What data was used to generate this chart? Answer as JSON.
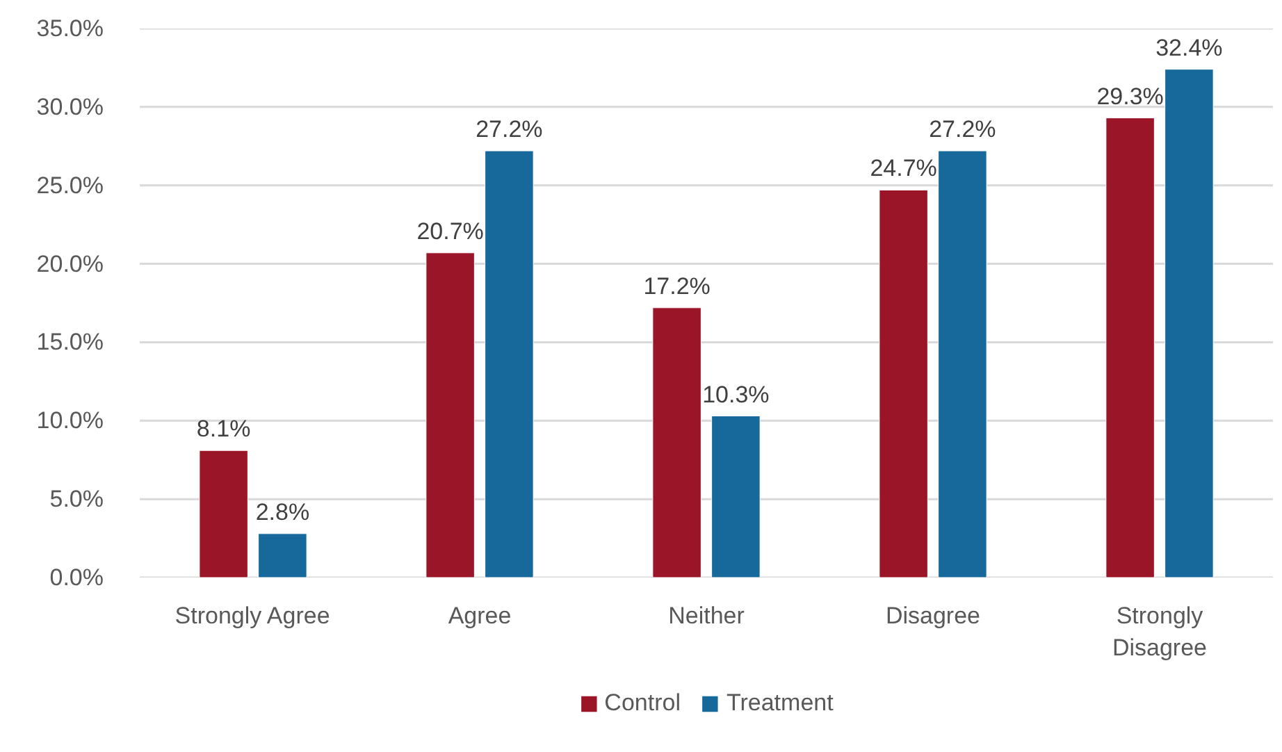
{
  "chart_data": {
    "type": "bar",
    "categories": [
      "Strongly Agree",
      "Agree",
      "Neither",
      "Disagree",
      "Strongly Disagree"
    ],
    "series": [
      {
        "name": "Control",
        "color": "#9b1528",
        "values": [
          8.1,
          20.7,
          17.2,
          24.7,
          29.3
        ],
        "value_labels": [
          "8.1%",
          "20.7%",
          "17.2%",
          "24.7%",
          "29.3%"
        ]
      },
      {
        "name": "Treatment",
        "color": "#16699a",
        "values": [
          2.8,
          27.2,
          10.3,
          27.2,
          32.4
        ],
        "value_labels": [
          "2.8%",
          "27.2%",
          "10.3%",
          "27.2%",
          "32.4%"
        ]
      }
    ],
    "ylim": [
      0,
      35
    ],
    "yticks": [
      {
        "value": 0,
        "label": "0.0%"
      },
      {
        "value": 5,
        "label": "5.0%"
      },
      {
        "value": 10,
        "label": "10.0%"
      },
      {
        "value": 15,
        "label": "15.0%"
      },
      {
        "value": 20,
        "label": "20.0%"
      },
      {
        "value": 25,
        "label": "25.0%"
      },
      {
        "value": 30,
        "label": "30.0%"
      },
      {
        "value": 35,
        "label": "35.0%"
      }
    ],
    "grid": "y",
    "legend": "bottom"
  }
}
